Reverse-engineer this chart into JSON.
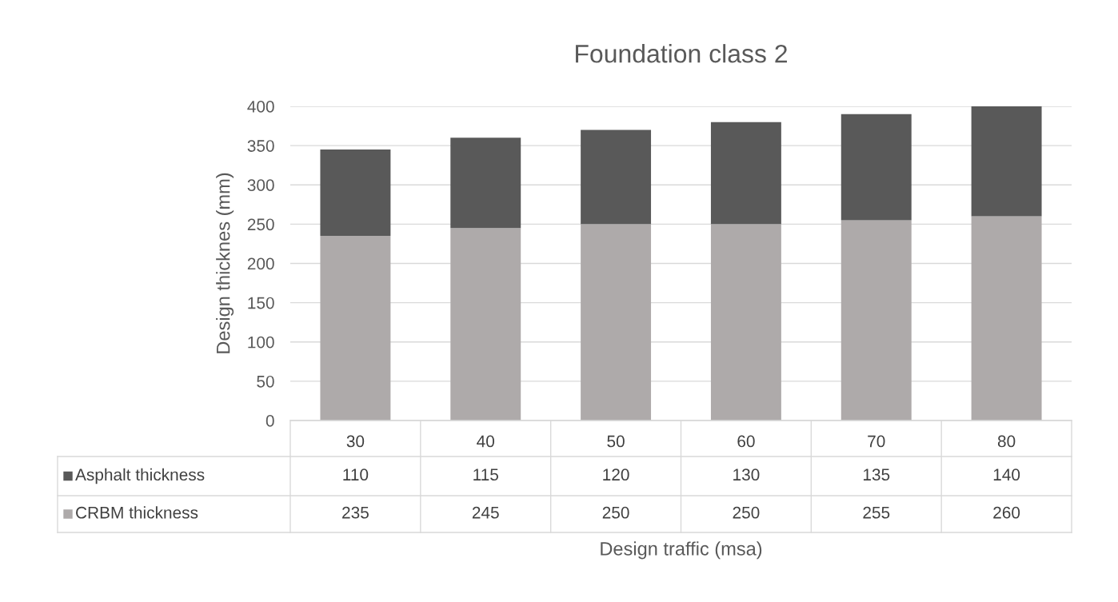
{
  "chart_data": {
    "type": "bar",
    "title": "Foundation class 2",
    "xlabel": "Design traffic (msa)",
    "ylabel": "Design thicknes (mm)",
    "categories": [
      "30",
      "40",
      "50",
      "60",
      "70",
      "80"
    ],
    "series": [
      {
        "name": "CRBM thickness",
        "color": "#aeaaaa",
        "values": [
          235,
          245,
          250,
          250,
          255,
          260
        ]
      },
      {
        "name": "Asphalt thickness",
        "color": "#595959",
        "values": [
          110,
          115,
          120,
          130,
          135,
          140
        ]
      }
    ],
    "stacked": true,
    "ylim": [
      0,
      400
    ],
    "yticks": [
      0,
      50,
      100,
      150,
      200,
      250,
      300,
      350,
      400
    ],
    "grid": "y",
    "data_labels": true,
    "legend": "bottom"
  }
}
